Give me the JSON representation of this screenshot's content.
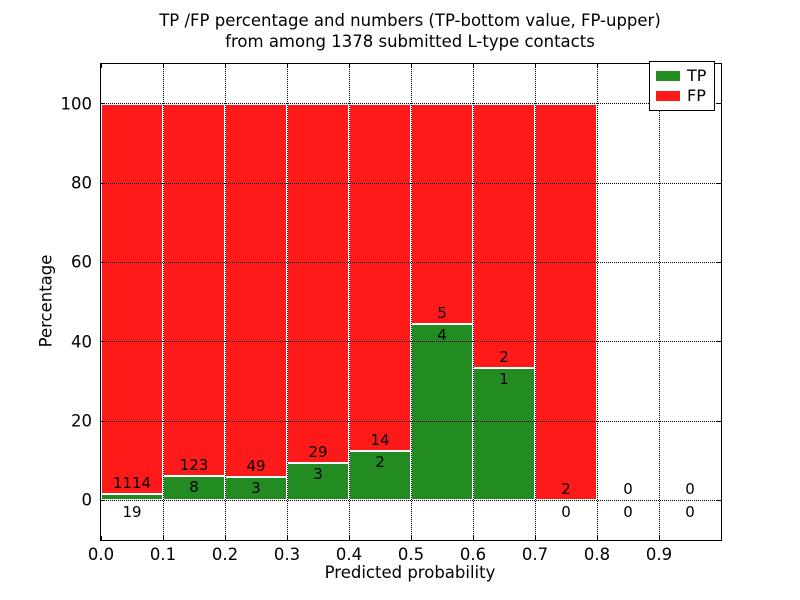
{
  "chart_data": {
    "type": "bar",
    "stacked": true,
    "title_lines": [
      "TP /FP percentage and numbers (TP-bottom value, FP-upper)",
      "from among 1378 submitted L-type contacts"
    ],
    "xlabel": "Predicted probability",
    "ylabel": "Percentage",
    "xlim": [
      0.0,
      1.0
    ],
    "ylim": [
      -10,
      110
    ],
    "xticks": [
      "0.0",
      "0.1",
      "0.2",
      "0.3",
      "0.4",
      "0.5",
      "0.6",
      "0.7",
      "0.8",
      "0.9"
    ],
    "yticks": [
      0,
      20,
      40,
      60,
      80,
      100
    ],
    "grid_style": "dotted",
    "bin_width": 0.1,
    "total_contacts": 1378,
    "legend": {
      "position": "upper-right",
      "entries": [
        {
          "label": "TP",
          "color": "#228b22"
        },
        {
          "label": "FP",
          "color": "#ff1a1a"
        }
      ]
    },
    "bins": [
      {
        "range": [
          0.0,
          0.1
        ],
        "tp_count": 19,
        "fp_count": 1114,
        "tp_pct": 1.68,
        "fp_pct": 98.32
      },
      {
        "range": [
          0.1,
          0.2
        ],
        "tp_count": 8,
        "fp_count": 123,
        "tp_pct": 6.11,
        "fp_pct": 93.89
      },
      {
        "range": [
          0.2,
          0.3
        ],
        "tp_count": 3,
        "fp_count": 49,
        "tp_pct": 5.77,
        "fp_pct": 94.23
      },
      {
        "range": [
          0.3,
          0.4
        ],
        "tp_count": 3,
        "fp_count": 29,
        "tp_pct": 9.38,
        "fp_pct": 90.62
      },
      {
        "range": [
          0.4,
          0.5
        ],
        "tp_count": 2,
        "fp_count": 14,
        "tp_pct": 12.5,
        "fp_pct": 87.5
      },
      {
        "range": [
          0.5,
          0.6
        ],
        "tp_count": 4,
        "fp_count": 5,
        "tp_pct": 44.44,
        "fp_pct": 55.56
      },
      {
        "range": [
          0.6,
          0.7
        ],
        "tp_count": 1,
        "fp_count": 2,
        "tp_pct": 33.33,
        "fp_pct": 66.67
      },
      {
        "range": [
          0.7,
          0.8
        ],
        "tp_count": 0,
        "fp_count": 2,
        "tp_pct": 0,
        "fp_pct": 100
      },
      {
        "range": [
          0.8,
          0.9
        ],
        "tp_count": 0,
        "fp_count": 0,
        "tp_pct": 0,
        "fp_pct": 0
      },
      {
        "range": [
          0.9,
          1.0
        ],
        "tp_count": 0,
        "fp_count": 0,
        "tp_pct": 0,
        "fp_pct": 0
      }
    ]
  }
}
